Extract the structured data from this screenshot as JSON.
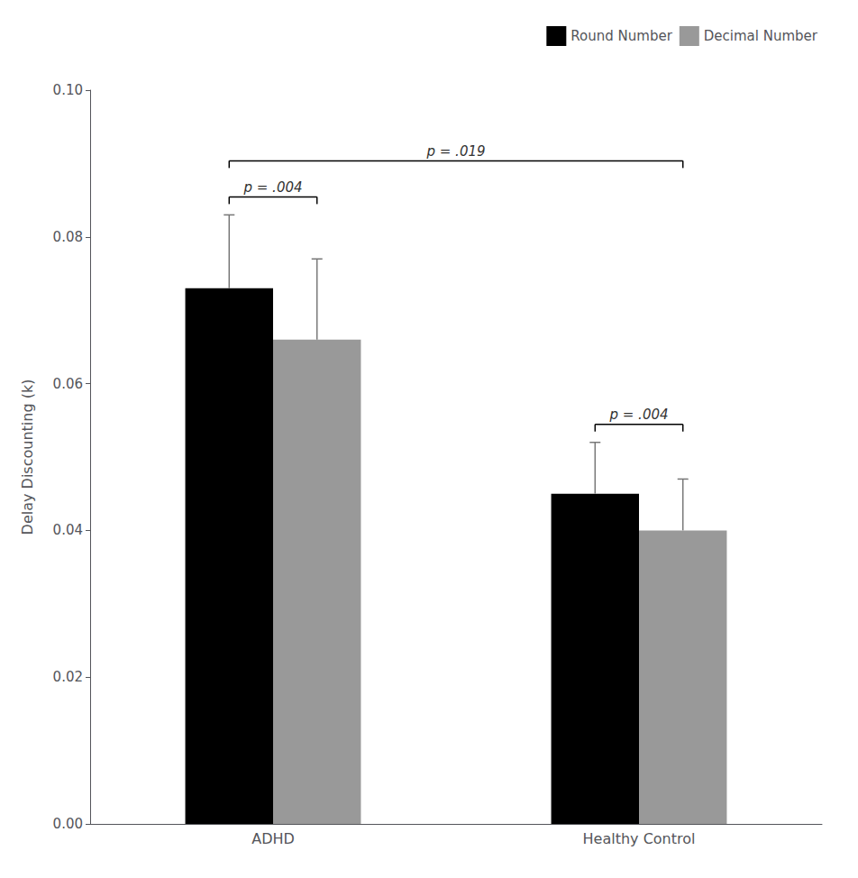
{
  "chart_data": {
    "type": "bar",
    "categories": [
      "ADHD",
      "Healthy Control"
    ],
    "series": [
      {
        "name": "Round Number",
        "color": "#000000",
        "values": [
          0.073,
          0.045
        ],
        "errors_up": [
          0.01,
          0.007
        ]
      },
      {
        "name": "Decimal Number",
        "color": "#999999",
        "values": [
          0.066,
          0.04
        ],
        "errors_up": [
          0.011,
          0.007
        ]
      }
    ],
    "ylabel": "Delay Discounting (k)",
    "ylim": [
      0.0,
      0.1
    ],
    "yticks": [
      {
        "value": 0.0,
        "label": "0.00"
      },
      {
        "value": 0.02,
        "label": "0.02"
      },
      {
        "value": 0.04,
        "label": "0.04"
      },
      {
        "value": 0.06,
        "label": "0.06"
      },
      {
        "value": 0.08,
        "label": "0.08"
      },
      {
        "value": 0.1,
        "label": "0.10"
      }
    ],
    "grid": false,
    "legend": "upper right",
    "annotations": [
      {
        "text": "p = .004",
        "from": {
          "category": "ADHD",
          "series": "Round Number"
        },
        "to": {
          "category": "ADHD",
          "series": "Decimal Number"
        }
      },
      {
        "text": "p = .004",
        "from": {
          "category": "Healthy Control",
          "series": "Round Number"
        },
        "to": {
          "category": "Healthy Control",
          "series": "Decimal Number"
        }
      },
      {
        "text": "p = .019",
        "from": {
          "category": "ADHD",
          "series": "Round Number"
        },
        "to": {
          "category": "Healthy Control",
          "series": "Decimal Number"
        }
      }
    ]
  }
}
